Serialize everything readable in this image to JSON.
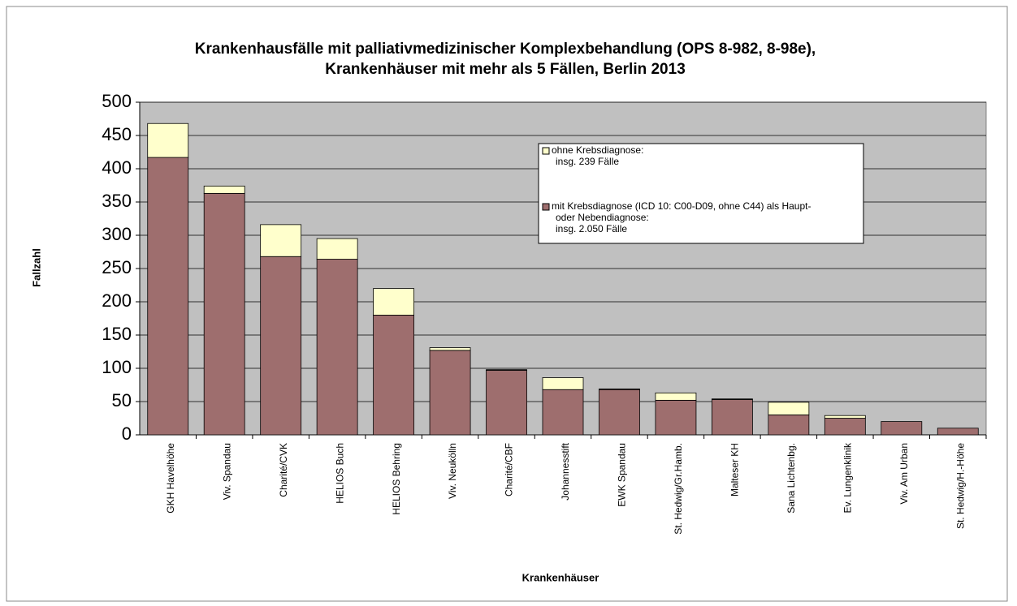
{
  "chart_data": {
    "type": "stacked_bar",
    "title": "Krankenhausfälle mit palliativmedizinischer Komplexbehandlung (OPS 8-982, 8-98e),",
    "subtitle": "Krankenhäuser mit mehr als 5 Fällen, Berlin 2013",
    "x_label": "Krankenhäuser",
    "y_label": "Fallzahl",
    "categories": [
      "GKH Havelhöhe",
      "Viv. Spandau",
      "Charité/CVK",
      "HELIOS Buch",
      "HELIOS Behring",
      "Viv. Neukölln",
      "Charité/CBF",
      "Johannesstift",
      "EWK Spandau",
      "St. Hedwig/Gr.Hamb.",
      "Malteser KH",
      "Sana Lichtenbg.",
      "Ev. Lungenklinik",
      "Viv. Am Urban",
      "St. Hedwig/H.-Höhe"
    ],
    "series": [
      {
        "name": "mit Krebsdiagnose (ICD 10: C00-D09, ohne C44) als Haupt-\noder Nebendiagnose:\ninsg. 2.050 Fälle",
        "color": "#9e6e6e",
        "values": [
          417,
          363,
          268,
          264,
          180,
          127,
          97,
          68,
          68,
          52,
          53,
          30,
          25,
          20,
          10
        ]
      },
      {
        "name": "ohne Krebsdiagnose:\ninsg. 239 Fälle",
        "color": "#ffffcc",
        "values": [
          51,
          11,
          48,
          31,
          40,
          4,
          1,
          18,
          1,
          11,
          1,
          19,
          4,
          0,
          0
        ]
      }
    ],
    "ylim": [
      0,
      500
    ],
    "yticks": [
      0,
      50,
      100,
      150,
      200,
      250,
      300,
      350,
      400,
      450,
      500
    ],
    "grid": true
  }
}
